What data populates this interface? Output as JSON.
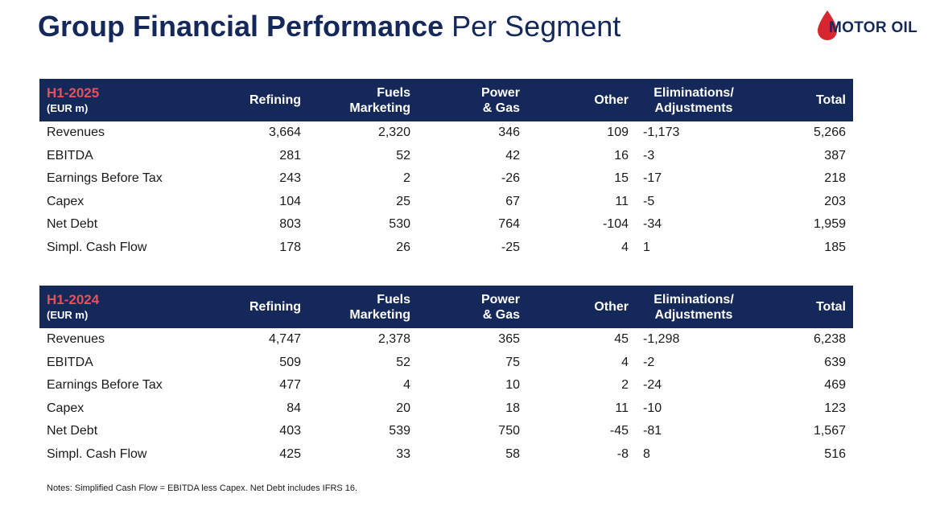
{
  "title": {
    "bold": "Group Financial Performance",
    "regular": "Per Segment"
  },
  "logo": {
    "text": "MOTOR OIL",
    "drop_color": "#d7262f"
  },
  "colors": {
    "header_bg": "#14285a",
    "period_accent": "#e8505b"
  },
  "columns": {
    "refining": "Refining",
    "fuels_line1": "Fuels",
    "fuels_line2": "Marketing",
    "power_line1": "Power",
    "power_line2": "& Gas",
    "other": "Other",
    "elim_line1": "Eliminations/",
    "elim_line2": "Adjustments",
    "total": "Total"
  },
  "tables": [
    {
      "period": "H1-2025",
      "unit": "(EUR m)",
      "rows": [
        {
          "label": "Revenues",
          "refining": "3,664",
          "fuels": "2,320",
          "power": "346",
          "other": "109",
          "elim": "-1,173",
          "total": "5,266"
        },
        {
          "label": "EBITDA",
          "refining": "281",
          "fuels": "52",
          "power": "42",
          "other": "16",
          "elim": "-3",
          "total": "387"
        },
        {
          "label": "Earnings Before Tax",
          "refining": "243",
          "fuels": "2",
          "power": "-26",
          "other": "15",
          "elim": "-17",
          "total": "218"
        },
        {
          "label": "Capex",
          "refining": "104",
          "fuels": "25",
          "power": "67",
          "other": "11",
          "elim": "-5",
          "total": "203"
        },
        {
          "label": "Net Debt",
          "refining": "803",
          "fuels": "530",
          "power": "764",
          "other": "-104",
          "elim": "-34",
          "total": "1,959"
        },
        {
          "label": "Simpl. Cash Flow",
          "refining": "178",
          "fuels": "26",
          "power": "-25",
          "other": "4",
          "elim": "1",
          "total": "185"
        }
      ]
    },
    {
      "period": "H1-2024",
      "unit": "(EUR m)",
      "rows": [
        {
          "label": "Revenues",
          "refining": "4,747",
          "fuels": "2,378",
          "power": "365",
          "other": "45",
          "elim": "-1,298",
          "total": "6,238"
        },
        {
          "label": "EBITDA",
          "refining": "509",
          "fuels": "52",
          "power": "75",
          "other": "4",
          "elim": "-2",
          "total": "639"
        },
        {
          "label": "Earnings Before Tax",
          "refining": "477",
          "fuels": "4",
          "power": "10",
          "other": "2",
          "elim": "-24",
          "total": "469"
        },
        {
          "label": "Capex",
          "refining": "84",
          "fuels": "20",
          "power": "18",
          "other": "11",
          "elim": "-10",
          "total": "123"
        },
        {
          "label": "Net Debt",
          "refining": "403",
          "fuels": "539",
          "power": "750",
          "other": "-45",
          "elim": "-81",
          "total": "1,567"
        },
        {
          "label": "Simpl. Cash Flow",
          "refining": "425",
          "fuels": "33",
          "power": "58",
          "other": "-8",
          "elim": "8",
          "total": "516"
        }
      ]
    }
  ],
  "note": "Notes: Simplified Cash Flow = EBITDA less Capex. Net Debt includes IFRS 16."
}
